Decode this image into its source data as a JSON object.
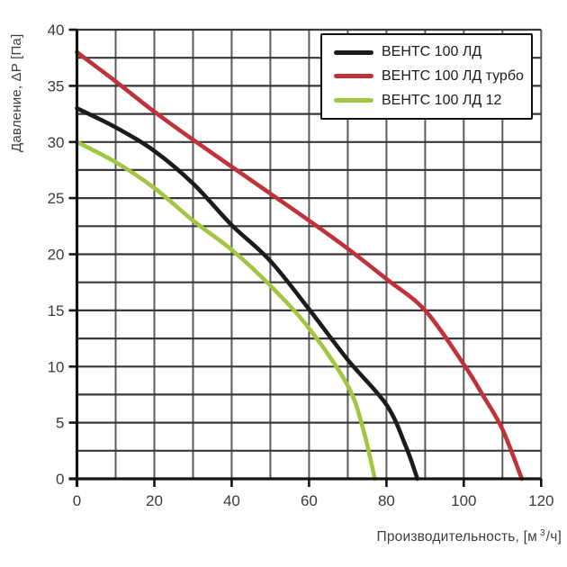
{
  "chart_data": {
    "type": "line",
    "title": "",
    "xlabel_parts": {
      "prefix": "Производительность, [м",
      "sup": "3",
      "suffix": "/ч]"
    },
    "ylabel": "Давление, ΔP [Па]",
    "xlim": [
      0,
      120
    ],
    "ylim": [
      0,
      40
    ],
    "x_ticks": [
      0,
      20,
      40,
      60,
      80,
      100,
      120
    ],
    "y_ticks": [
      0,
      5,
      10,
      15,
      20,
      25,
      30,
      35,
      40
    ],
    "x_grid_step": 10,
    "y_grid_step": 2.5,
    "grid": true,
    "legend_position": "top-right",
    "series": [
      {
        "name": "ВЕНТС 100 ЛД",
        "color": "#1b1b1b",
        "points": [
          [
            0,
            33
          ],
          [
            10,
            31.3
          ],
          [
            20,
            29.2
          ],
          [
            30,
            26.3
          ],
          [
            40,
            22.6
          ],
          [
            50,
            19.4
          ],
          [
            60,
            15.1
          ],
          [
            70,
            10.6
          ],
          [
            80,
            6.6
          ],
          [
            85,
            2.9
          ],
          [
            88,
            0
          ]
        ]
      },
      {
        "name": "ВЕНТС 100 ЛД турбо",
        "color": "#bf3239",
        "points": [
          [
            0,
            38
          ],
          [
            10,
            35.4
          ],
          [
            20,
            32.7
          ],
          [
            30,
            30.2
          ],
          [
            40,
            27.8
          ],
          [
            50,
            25.4
          ],
          [
            60,
            23
          ],
          [
            70,
            20.5
          ],
          [
            80,
            17.8
          ],
          [
            90,
            15
          ],
          [
            100,
            10.2
          ],
          [
            105,
            7.4
          ],
          [
            110,
            4.4
          ],
          [
            115,
            0
          ]
        ]
      },
      {
        "name": "ВЕНТС 100 ЛД 12",
        "color": "#a4c544",
        "points": [
          [
            0,
            30
          ],
          [
            10,
            28.2
          ],
          [
            20,
            25.9
          ],
          [
            30,
            23
          ],
          [
            40,
            20.4
          ],
          [
            50,
            17.2
          ],
          [
            60,
            13.4
          ],
          [
            70,
            8.3
          ],
          [
            74,
            4.4
          ],
          [
            77,
            0
          ]
        ]
      }
    ],
    "colors": {
      "axis": "#141414",
      "grid_h": "#383838",
      "grid_v": "#5c5c5c",
      "tick_label": "#3b3b3b"
    }
  }
}
